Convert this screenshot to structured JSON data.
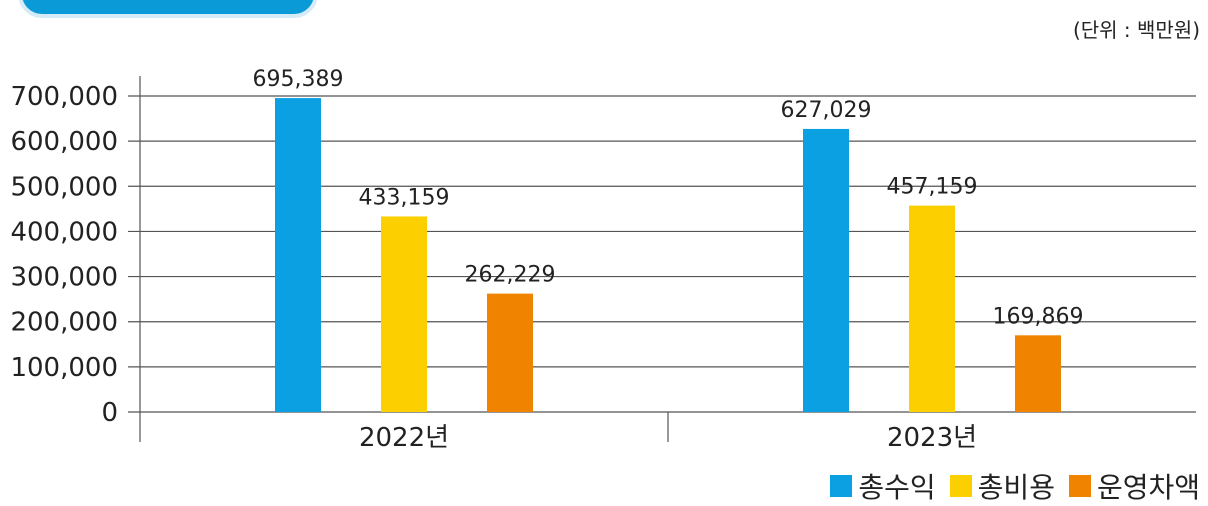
{
  "unit_note": "(단위 : 백만원)",
  "colors": {
    "header_tab": "#0a9ad8",
    "grid": "#555555"
  },
  "chart_data": {
    "type": "bar",
    "categories": [
      "2022년",
      "2023년"
    ],
    "series": [
      {
        "name": "총수익",
        "color": "#0aa0e2",
        "values": [
          695389,
          627029
        ],
        "labels": [
          "695,389",
          "627,029"
        ]
      },
      {
        "name": "총비용",
        "color": "#fcd000",
        "values": [
          433159,
          457159
        ],
        "labels": [
          "433,159",
          "457,159"
        ]
      },
      {
        "name": "운영차액",
        "color": "#f08400",
        "values": [
          262229,
          169869
        ],
        "labels": [
          "262,229",
          "169,869"
        ]
      }
    ],
    "yticks": [
      0,
      100000,
      200000,
      300000,
      400000,
      500000,
      600000,
      700000
    ],
    "ytick_labels": [
      "0",
      "100,000",
      "200,000",
      "300,000",
      "400,000",
      "500,000",
      "600,000",
      "700,000"
    ],
    "ylim": [
      0,
      700000
    ],
    "grid": true,
    "legend": "bottom-right"
  }
}
